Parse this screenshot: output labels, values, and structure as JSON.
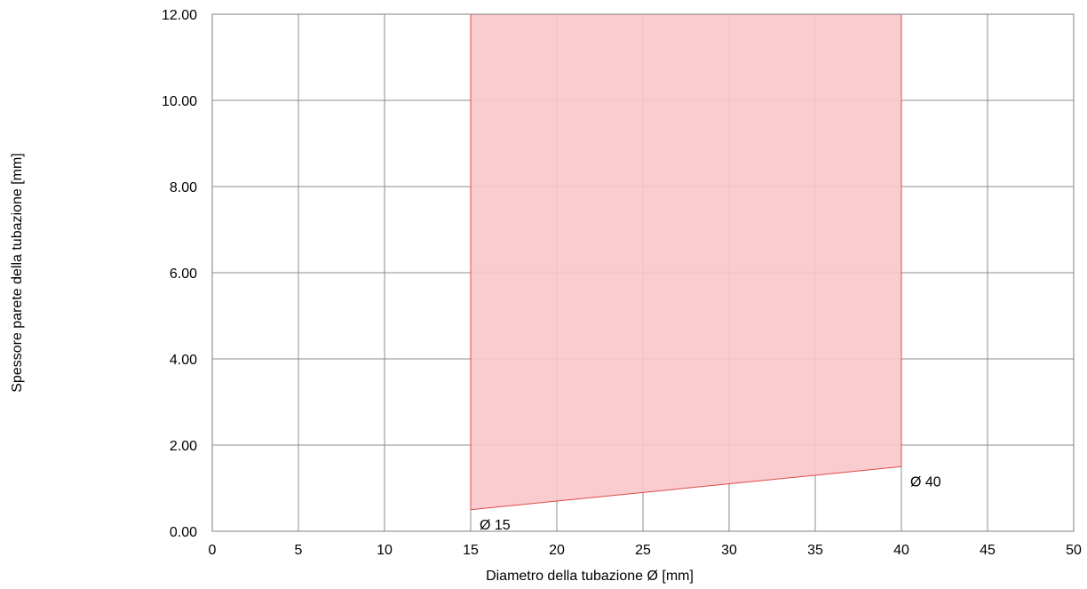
{
  "chart_data": {
    "type": "area",
    "xlabel": "Diametro della tubazione Ø [mm]",
    "ylabel": "Spessore parete della tubazione [mm]",
    "xlim": [
      0,
      50
    ],
    "ylim": [
      0,
      12
    ],
    "x_ticks": [
      0,
      5,
      10,
      15,
      20,
      25,
      30,
      35,
      40,
      45,
      50
    ],
    "x_tick_labels": [
      "0",
      "5",
      "10",
      "15",
      "20",
      "25",
      "30",
      "35",
      "40",
      "45",
      "50"
    ],
    "y_ticks": [
      0,
      2,
      4,
      6,
      8,
      10,
      12
    ],
    "y_tick_labels": [
      "0.00",
      "2.00",
      "4.00",
      "6.00",
      "8.00",
      "10.00",
      "12.00"
    ],
    "grid": true,
    "region": {
      "lower_boundary": [
        {
          "x": 15,
          "y": 0.5
        },
        {
          "x": 40,
          "y": 1.5
        }
      ],
      "upper_y": 12,
      "fill_color": "#f8c8cb",
      "edge_color": "#e04a4a"
    },
    "annotations": [
      {
        "text": "Ø 15",
        "x": 15,
        "y": 0.5
      },
      {
        "text": "Ø 40",
        "x": 40,
        "y": 1.5
      }
    ]
  }
}
